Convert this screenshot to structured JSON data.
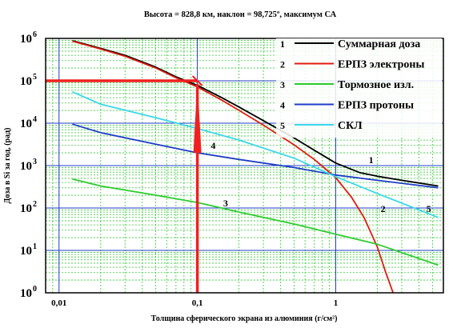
{
  "chart_data": {
    "type": "line",
    "title": "Высота = 828,8 км, наклон = 98,725º, максимум СА",
    "xlabel": "Толщина сферического экрана из алюминия (г/см²)",
    "ylabel": "Доза в Si за год, (рад)",
    "x_scale": "log",
    "y_scale": "log",
    "xlim": [
      0.008,
      6
    ],
    "ylim": [
      1,
      1000000
    ],
    "grid": true,
    "legend_position": "top-right",
    "x_ticks": [
      {
        "value": 0.01,
        "label": "0,01"
      },
      {
        "value": 0.1,
        "label": "0,1"
      },
      {
        "value": 1,
        "label": "1"
      }
    ],
    "y_ticks": [
      {
        "value": 1,
        "base": "10",
        "exp": "0"
      },
      {
        "value": 10,
        "base": "10",
        "exp": "1"
      },
      {
        "value": 100,
        "base": "10",
        "exp": "2"
      },
      {
        "value": 1000,
        "base": "10",
        "exp": "3"
      },
      {
        "value": 10000,
        "base": "10",
        "exp": "4"
      },
      {
        "value": 100000,
        "base": "10",
        "exp": "5"
      },
      {
        "value": 1000000,
        "base": "10",
        "exp": "6"
      }
    ],
    "series": [
      {
        "id": "1",
        "name": "Суммарная доза",
        "color": "#000000",
        "x": [
          0.0125,
          0.02,
          0.03,
          0.05,
          0.07,
          0.1,
          0.15,
          0.2,
          0.3,
          0.5,
          0.7,
          1.0,
          1.5,
          2.0,
          3.0,
          5.5
        ],
        "y": [
          880000,
          580000,
          400000,
          210000,
          125000,
          78000,
          40000,
          24000,
          11500,
          4500,
          2300,
          1150,
          680,
          560,
          450,
          330
        ]
      },
      {
        "id": "2",
        "name": "ЕРПЗ электроны",
        "color": "#e01c0c",
        "x": [
          0.0125,
          0.02,
          0.03,
          0.05,
          0.07,
          0.1,
          0.15,
          0.2,
          0.3,
          0.5,
          0.7,
          1.0,
          1.3,
          1.6,
          2.0,
          2.3,
          2.6
        ],
        "y": [
          860000,
          560000,
          380000,
          200000,
          118000,
          72000,
          35000,
          20000,
          9000,
          3100,
          1400,
          520,
          180,
          60,
          12,
          3,
          1
        ]
      },
      {
        "id": "3",
        "name": "Тормозное изл.",
        "color": "#2ecc2e",
        "x": [
          0.0125,
          0.02,
          0.05,
          0.1,
          0.2,
          0.5,
          1.0,
          2.0,
          5.5
        ],
        "y": [
          480,
          330,
          200,
          135,
          80,
          42,
          24,
          14,
          4.5
        ]
      },
      {
        "id": "4",
        "name": "ЕРПЗ протоны",
        "color": "#1f3cc8",
        "x": [
          0.0125,
          0.02,
          0.05,
          0.1,
          0.2,
          0.5,
          1.0,
          2.0,
          5.5
        ],
        "y": [
          9500,
          6000,
          3200,
          2000,
          1400,
          900,
          600,
          450,
          300
        ]
      },
      {
        "id": "5",
        "name": "СКЛ",
        "color": "#3ad8ea",
        "x": [
          0.0125,
          0.02,
          0.05,
          0.1,
          0.2,
          0.5,
          1.0,
          2.0,
          5.5
        ],
        "y": [
          55000,
          28000,
          13500,
          7500,
          4000,
          1500,
          550,
          220,
          60
        ]
      }
    ],
    "annotations": [
      {
        "text": "1",
        "series": "1",
        "x": 1.8,
        "y": 1150
      },
      {
        "text": "2",
        "series": "2",
        "x": 2.2,
        "y": 80
      },
      {
        "text": "3",
        "series": "3",
        "x": 0.16,
        "y": 110
      },
      {
        "text": "4",
        "series": "4",
        "x": 0.13,
        "y": 2500
      },
      {
        "text": "5",
        "series": "5",
        "x": 4.7,
        "y": 80
      }
    ],
    "markers": {
      "color": "#f02020",
      "point": {
        "x": 0.1,
        "y": 100000
      },
      "description_lines": "horizontal line at y=1e5 from axis to x=0.1, vertical arrow at x=0.1"
    }
  }
}
